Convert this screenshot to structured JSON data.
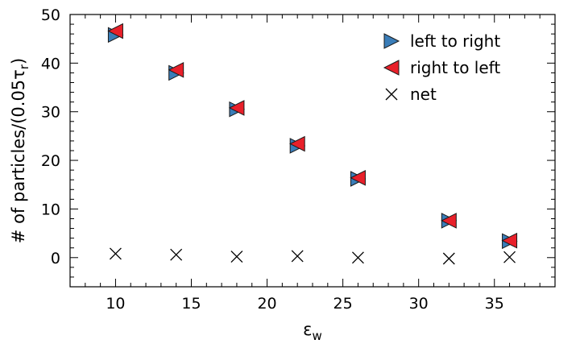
{
  "chart_data": {
    "type": "scatter",
    "xlabel": "ε",
    "xlabel_sub": "w",
    "ylabel": "# of particles/(0.05τ",
    "ylabel_sub": "r",
    "ylabel_close": ")",
    "xlim": [
      7,
      39
    ],
    "ylim": [
      -6,
      50
    ],
    "xticks": [
      10,
      15,
      20,
      25,
      30,
      35
    ],
    "yticks": [
      0,
      10,
      20,
      30,
      40,
      50
    ],
    "legend_position": "top-right",
    "grid": false,
    "series": [
      {
        "name": "left to right",
        "marker": "triangle-right",
        "color": "#3a7db8",
        "x": [
          10,
          14,
          18,
          22,
          26,
          32,
          36
        ],
        "y": [
          45.8,
          38.0,
          30.5,
          23.0,
          16.2,
          7.6,
          3.4
        ]
      },
      {
        "name": "right to left",
        "marker": "triangle-left",
        "color": "#e8202a",
        "x": [
          10,
          14,
          18,
          22,
          26,
          32,
          36
        ],
        "y": [
          46.6,
          38.6,
          30.8,
          23.4,
          16.4,
          7.6,
          3.5
        ]
      },
      {
        "name": "net",
        "marker": "x",
        "color": "#000000",
        "x": [
          10,
          14,
          18,
          22,
          26,
          32,
          36
        ],
        "y": [
          0.8,
          0.6,
          0.2,
          0.3,
          0.0,
          -0.2,
          0.1
        ]
      }
    ]
  }
}
